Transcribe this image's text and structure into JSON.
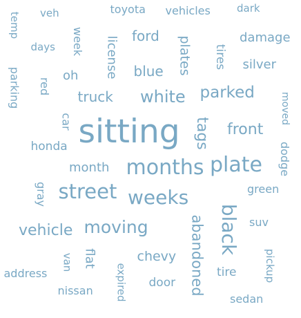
{
  "word_cloud": {
    "color": "#79a8c4",
    "words": [
      {
        "text": "sitting",
        "weight": 100
      },
      {
        "text": "months",
        "weight": 60
      },
      {
        "text": "plate",
        "weight": 58
      },
      {
        "text": "street",
        "weight": 56
      },
      {
        "text": "weeks",
        "weight": 55
      },
      {
        "text": "black",
        "weight": 55
      },
      {
        "text": "moving",
        "weight": 50
      },
      {
        "text": "white",
        "weight": 46
      },
      {
        "text": "parked",
        "weight": 45
      },
      {
        "text": "tags",
        "weight": 44
      },
      {
        "text": "front",
        "weight": 42
      },
      {
        "text": "vehicle",
        "weight": 45
      },
      {
        "text": "abandoned",
        "weight": 42
      },
      {
        "text": "truck",
        "weight": 36
      },
      {
        "text": "blue",
        "weight": 36
      },
      {
        "text": "ford",
        "weight": 36
      },
      {
        "text": "month",
        "weight": 34
      },
      {
        "text": "chevy",
        "weight": 36
      },
      {
        "text": "honda",
        "weight": 32
      },
      {
        "text": "license",
        "weight": 34
      },
      {
        "text": "plates",
        "weight": 36
      },
      {
        "text": "tires",
        "weight": 34
      },
      {
        "text": "silver",
        "weight": 32
      },
      {
        "text": "damage",
        "weight": 32
      },
      {
        "text": "oh",
        "weight": 34
      },
      {
        "text": "flat",
        "weight": 36
      },
      {
        "text": "green",
        "weight": 30
      },
      {
        "text": "suv",
        "weight": 30
      },
      {
        "text": "dodge",
        "weight": 30
      },
      {
        "text": "moved",
        "weight": 28
      },
      {
        "text": "gray",
        "weight": 30
      },
      {
        "text": "car",
        "weight": 30
      },
      {
        "text": "red",
        "weight": 30
      },
      {
        "text": "parking",
        "weight": 30
      },
      {
        "text": "week",
        "weight": 30
      },
      {
        "text": "days",
        "weight": 28
      },
      {
        "text": "temp",
        "weight": 28
      },
      {
        "text": "veh",
        "weight": 28
      },
      {
        "text": "toyota",
        "weight": 28
      },
      {
        "text": "vehicles",
        "weight": 28
      },
      {
        "text": "dark",
        "weight": 28
      },
      {
        "text": "door",
        "weight": 30
      },
      {
        "text": "expired",
        "weight": 28
      },
      {
        "text": "van",
        "weight": 28
      },
      {
        "text": "address",
        "weight": 28
      },
      {
        "text": "nissan",
        "weight": 28
      },
      {
        "text": "tire",
        "weight": 30
      },
      {
        "text": "pickup",
        "weight": 28
      },
      {
        "text": "sedan",
        "weight": 28
      }
    ]
  }
}
